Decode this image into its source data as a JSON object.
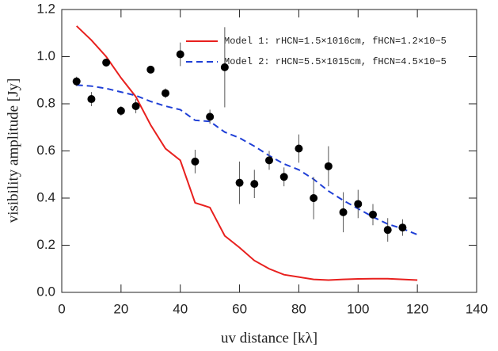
{
  "chart_data": {
    "type": "scatter",
    "xlabel": "uv distance [kλ]",
    "ylabel": "visibility amplitude [Jy]",
    "xlim": [
      0,
      140
    ],
    "xticks": [
      0,
      20,
      40,
      60,
      80,
      100,
      120,
      140
    ],
    "ylim": [
      0,
      1.2
    ],
    "yticks": [
      {
        "value": 0,
        "label": "0.0"
      },
      0.2,
      0.4,
      0.6,
      0.8,
      {
        "value": 1,
        "label": "1.0"
      },
      1.2
    ],
    "points": {
      "color": "#000000",
      "x": [
        5,
        10,
        15,
        20,
        25,
        30,
        35,
        40,
        45,
        50,
        55,
        60,
        65,
        70,
        75,
        80,
        85,
        90,
        95,
        100,
        105,
        110,
        115
      ],
      "values": [
        0.895,
        0.82,
        0.975,
        0.77,
        0.79,
        0.945,
        0.845,
        1.01,
        0.555,
        0.745,
        0.955,
        0.465,
        0.46,
        0.56,
        0.49,
        0.61,
        0.4,
        0.535,
        0.34,
        0.375,
        0.33,
        0.265,
        0.275
      ],
      "errors": [
        0.02,
        0.03,
        0.015,
        0.02,
        0.03,
        0.015,
        0.02,
        0.05,
        0.05,
        0.03,
        0.17,
        0.09,
        0.06,
        0.04,
        0.04,
        0.06,
        0.09,
        0.085,
        0.085,
        0.06,
        0.045,
        0.05,
        0.035
      ]
    },
    "series": [
      {
        "name": "Model 1: rHCN=1.5×1016cm, fHCN=1.2×10−5",
        "color": "#e8201e",
        "dash": false,
        "x": [
          5,
          10,
          15,
          20,
          25,
          30,
          35,
          40,
          45,
          50,
          55,
          60,
          65,
          70,
          75,
          80,
          85,
          90,
          95,
          100,
          105,
          110,
          115,
          120
        ],
        "values": [
          1.13,
          1.07,
          1.0,
          0.91,
          0.83,
          0.71,
          0.61,
          0.56,
          0.38,
          0.36,
          0.24,
          0.19,
          0.135,
          0.1,
          0.075,
          0.065,
          0.055,
          0.052,
          0.055,
          0.057,
          0.058,
          0.058,
          0.055,
          0.052
        ]
      },
      {
        "name": "Model 2: rHCN=5.5×1015cm, fHCN=4.5×10−5",
        "color": "#1f3fd6",
        "dash": true,
        "x": [
          5,
          10,
          15,
          20,
          25,
          30,
          35,
          40,
          45,
          50,
          55,
          60,
          65,
          70,
          75,
          80,
          85,
          90,
          95,
          100,
          105,
          110,
          115,
          120
        ],
        "values": [
          0.88,
          0.875,
          0.865,
          0.85,
          0.835,
          0.81,
          0.79,
          0.775,
          0.73,
          0.725,
          0.68,
          0.655,
          0.62,
          0.58,
          0.545,
          0.52,
          0.48,
          0.43,
          0.39,
          0.355,
          0.32,
          0.29,
          0.27,
          0.245
        ]
      }
    ]
  }
}
